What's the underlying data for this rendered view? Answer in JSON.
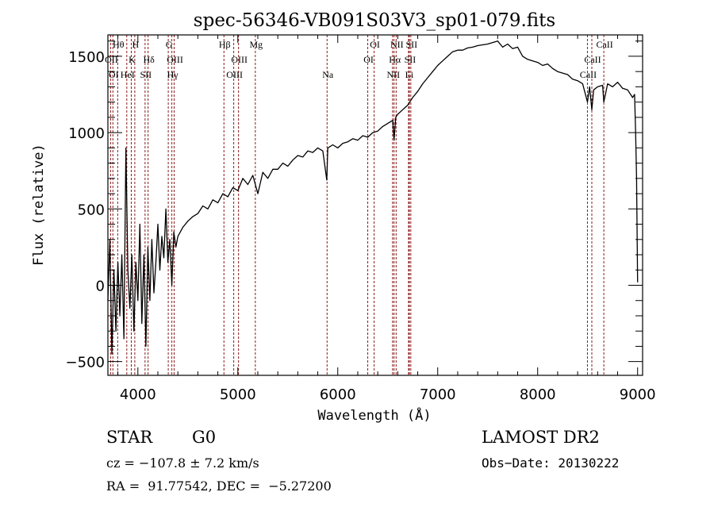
{
  "chart_data": {
    "type": "line",
    "title": "spec-56346-VB091S03V3_sp01-079.fits",
    "xlabel": "Wavelength (Å)",
    "ylabel": "Flux (relative)",
    "xlim": [
      3700,
      9050
    ],
    "ylim": [
      -590,
      1640
    ],
    "x_ticks": [
      4000,
      5000,
      6000,
      7000,
      8000,
      9000
    ],
    "x_tick_labels": [
      "4000",
      "5000",
      "6000",
      "7000",
      "8000",
      "9000"
    ],
    "y_ticks": [
      -500,
      0,
      500,
      1000,
      1500
    ],
    "y_tick_labels": [
      "-500",
      "0",
      "500",
      "1000",
      "1500"
    ],
    "grid": false,
    "series": [
      {
        "name": "spectrum",
        "color": "#000000",
        "points": [
          [
            3700,
            -100
          ],
          [
            3720,
            300
          ],
          [
            3740,
            -450
          ],
          [
            3760,
            100
          ],
          [
            3780,
            -300
          ],
          [
            3800,
            150
          ],
          [
            3820,
            -200
          ],
          [
            3840,
            200
          ],
          [
            3860,
            -350
          ],
          [
            3880,
            900
          ],
          [
            3900,
            100
          ],
          [
            3920,
            -150
          ],
          [
            3940,
            200
          ],
          [
            3960,
            -300
          ],
          [
            3980,
            150
          ],
          [
            4000,
            -100
          ],
          [
            4020,
            400
          ],
          [
            4040,
            -250
          ],
          [
            4060,
            200
          ],
          [
            4080,
            -400
          ],
          [
            4100,
            250
          ],
          [
            4120,
            -100
          ],
          [
            4140,
            300
          ],
          [
            4160,
            -50
          ],
          [
            4180,
            150
          ],
          [
            4200,
            400
          ],
          [
            4220,
            100
          ],
          [
            4240,
            320
          ],
          [
            4260,
            180
          ],
          [
            4280,
            500
          ],
          [
            4300,
            150
          ],
          [
            4320,
            300
          ],
          [
            4340,
            0
          ],
          [
            4360,
            350
          ],
          [
            4380,
            250
          ],
          [
            4400,
            320
          ],
          [
            4450,
            380
          ],
          [
            4500,
            420
          ],
          [
            4550,
            450
          ],
          [
            4600,
            470
          ],
          [
            4650,
            520
          ],
          [
            4700,
            500
          ],
          [
            4750,
            560
          ],
          [
            4800,
            540
          ],
          [
            4850,
            600
          ],
          [
            4900,
            580
          ],
          [
            4950,
            640
          ],
          [
            5000,
            620
          ],
          [
            5050,
            700
          ],
          [
            5100,
            660
          ],
          [
            5150,
            720
          ],
          [
            5200,
            600
          ],
          [
            5250,
            740
          ],
          [
            5300,
            700
          ],
          [
            5350,
            760
          ],
          [
            5400,
            760
          ],
          [
            5450,
            800
          ],
          [
            5500,
            780
          ],
          [
            5550,
            820
          ],
          [
            5600,
            850
          ],
          [
            5650,
            840
          ],
          [
            5700,
            880
          ],
          [
            5750,
            870
          ],
          [
            5800,
            900
          ],
          [
            5850,
            880
          ],
          [
            5890,
            690
          ],
          [
            5900,
            900
          ],
          [
            5950,
            920
          ],
          [
            6000,
            900
          ],
          [
            6050,
            930
          ],
          [
            6100,
            940
          ],
          [
            6150,
            960
          ],
          [
            6200,
            950
          ],
          [
            6250,
            980
          ],
          [
            6300,
            970
          ],
          [
            6350,
            1000
          ],
          [
            6400,
            1010
          ],
          [
            6450,
            1040
          ],
          [
            6500,
            1060
          ],
          [
            6550,
            1080
          ],
          [
            6563,
            950
          ],
          [
            6580,
            1100
          ],
          [
            6600,
            1120
          ],
          [
            6650,
            1150
          ],
          [
            6700,
            1180
          ],
          [
            6750,
            1230
          ],
          [
            6800,
            1270
          ],
          [
            6850,
            1320
          ],
          [
            6900,
            1360
          ],
          [
            6950,
            1400
          ],
          [
            7000,
            1440
          ],
          [
            7050,
            1470
          ],
          [
            7100,
            1500
          ],
          [
            7150,
            1530
          ],
          [
            7200,
            1540
          ],
          [
            7250,
            1540
          ],
          [
            7300,
            1555
          ],
          [
            7350,
            1560
          ],
          [
            7400,
            1570
          ],
          [
            7450,
            1575
          ],
          [
            7500,
            1580
          ],
          [
            7550,
            1590
          ],
          [
            7600,
            1600
          ],
          [
            7650,
            1560
          ],
          [
            7700,
            1580
          ],
          [
            7750,
            1550
          ],
          [
            7800,
            1560
          ],
          [
            7850,
            1500
          ],
          [
            7900,
            1480
          ],
          [
            7950,
            1470
          ],
          [
            8000,
            1460
          ],
          [
            8050,
            1440
          ],
          [
            8100,
            1450
          ],
          [
            8150,
            1420
          ],
          [
            8200,
            1400
          ],
          [
            8250,
            1390
          ],
          [
            8300,
            1380
          ],
          [
            8350,
            1350
          ],
          [
            8400,
            1340
          ],
          [
            8450,
            1320
          ],
          [
            8498,
            1200
          ],
          [
            8520,
            1300
          ],
          [
            8542,
            1150
          ],
          [
            8560,
            1280
          ],
          [
            8600,
            1300
          ],
          [
            8650,
            1310
          ],
          [
            8662,
            1200
          ],
          [
            8700,
            1320
          ],
          [
            8750,
            1300
          ],
          [
            8800,
            1330
          ],
          [
            8850,
            1290
          ],
          [
            8900,
            1280
          ],
          [
            8950,
            1230
          ],
          [
            8970,
            1250
          ],
          [
            8980,
            1000
          ],
          [
            8990,
            700
          ],
          [
            9000,
            20
          ]
        ]
      }
    ],
    "spectral_lines": [
      {
        "label": "Hθ",
        "wavelength": 3798,
        "row": 0
      },
      {
        "label": "H",
        "wavelength": 3969,
        "row": 0
      },
      {
        "label": "G",
        "wavelength": 4304,
        "row": 0
      },
      {
        "label": "Hβ",
        "wavelength": 4861,
        "row": 0
      },
      {
        "label": "Mg",
        "wavelength": 5175,
        "row": 0
      },
      {
        "label": "OI",
        "wavelength": 6364,
        "row": 0
      },
      {
        "label": "NII",
        "wavelength": 6584,
        "row": 0
      },
      {
        "label": "SII",
        "wavelength": 6731,
        "row": 0
      },
      {
        "label": "CaII",
        "wavelength": 8662,
        "row": 0
      },
      {
        "label": "OII",
        "wavelength": 3727,
        "row": 1
      },
      {
        "label": "K",
        "wavelength": 3934,
        "row": 1
      },
      {
        "label": "Hδ",
        "wavelength": 4102,
        "row": 1
      },
      {
        "label": "OIII",
        "wavelength": 4363,
        "row": 1
      },
      {
        "label": "OIII",
        "wavelength": 5007,
        "row": 1
      },
      {
        "label": "OI",
        "wavelength": 6300,
        "row": 1
      },
      {
        "label": "Hα",
        "wavelength": 6563,
        "row": 1
      },
      {
        "label": "SII",
        "wavelength": 6716,
        "row": 1
      },
      {
        "label": "CaII",
        "wavelength": 8542,
        "row": 1
      },
      {
        "label": "OI",
        "wavelength": 3750,
        "row": 2
      },
      {
        "label": "HeI",
        "wavelength": 3889,
        "row": 2
      },
      {
        "label": "SII",
        "wavelength": 4072,
        "row": 2
      },
      {
        "label": "Hγ",
        "wavelength": 4340,
        "row": 2
      },
      {
        "label": "OIII",
        "wavelength": 4959,
        "row": 2
      },
      {
        "label": "Na",
        "wavelength": 5893,
        "row": 2
      },
      {
        "label": "NII",
        "wavelength": 6548,
        "row": 2
      },
      {
        "label": "Li",
        "wavelength": 6708,
        "row": 2
      },
      {
        "label": "CaII",
        "wavelength": 8498,
        "row": 2
      }
    ],
    "line_color": "#8b1a1a",
    "annotations": {
      "object_class": "STAR",
      "subclass": "G0",
      "redshift": "cz = −107.8 ± 7.2 km/s",
      "coords": "RA =  91.77542, DEC =  −5.27200",
      "survey": "LAMOST DR2",
      "obs_date": "Obs−Date: 20130222"
    }
  }
}
